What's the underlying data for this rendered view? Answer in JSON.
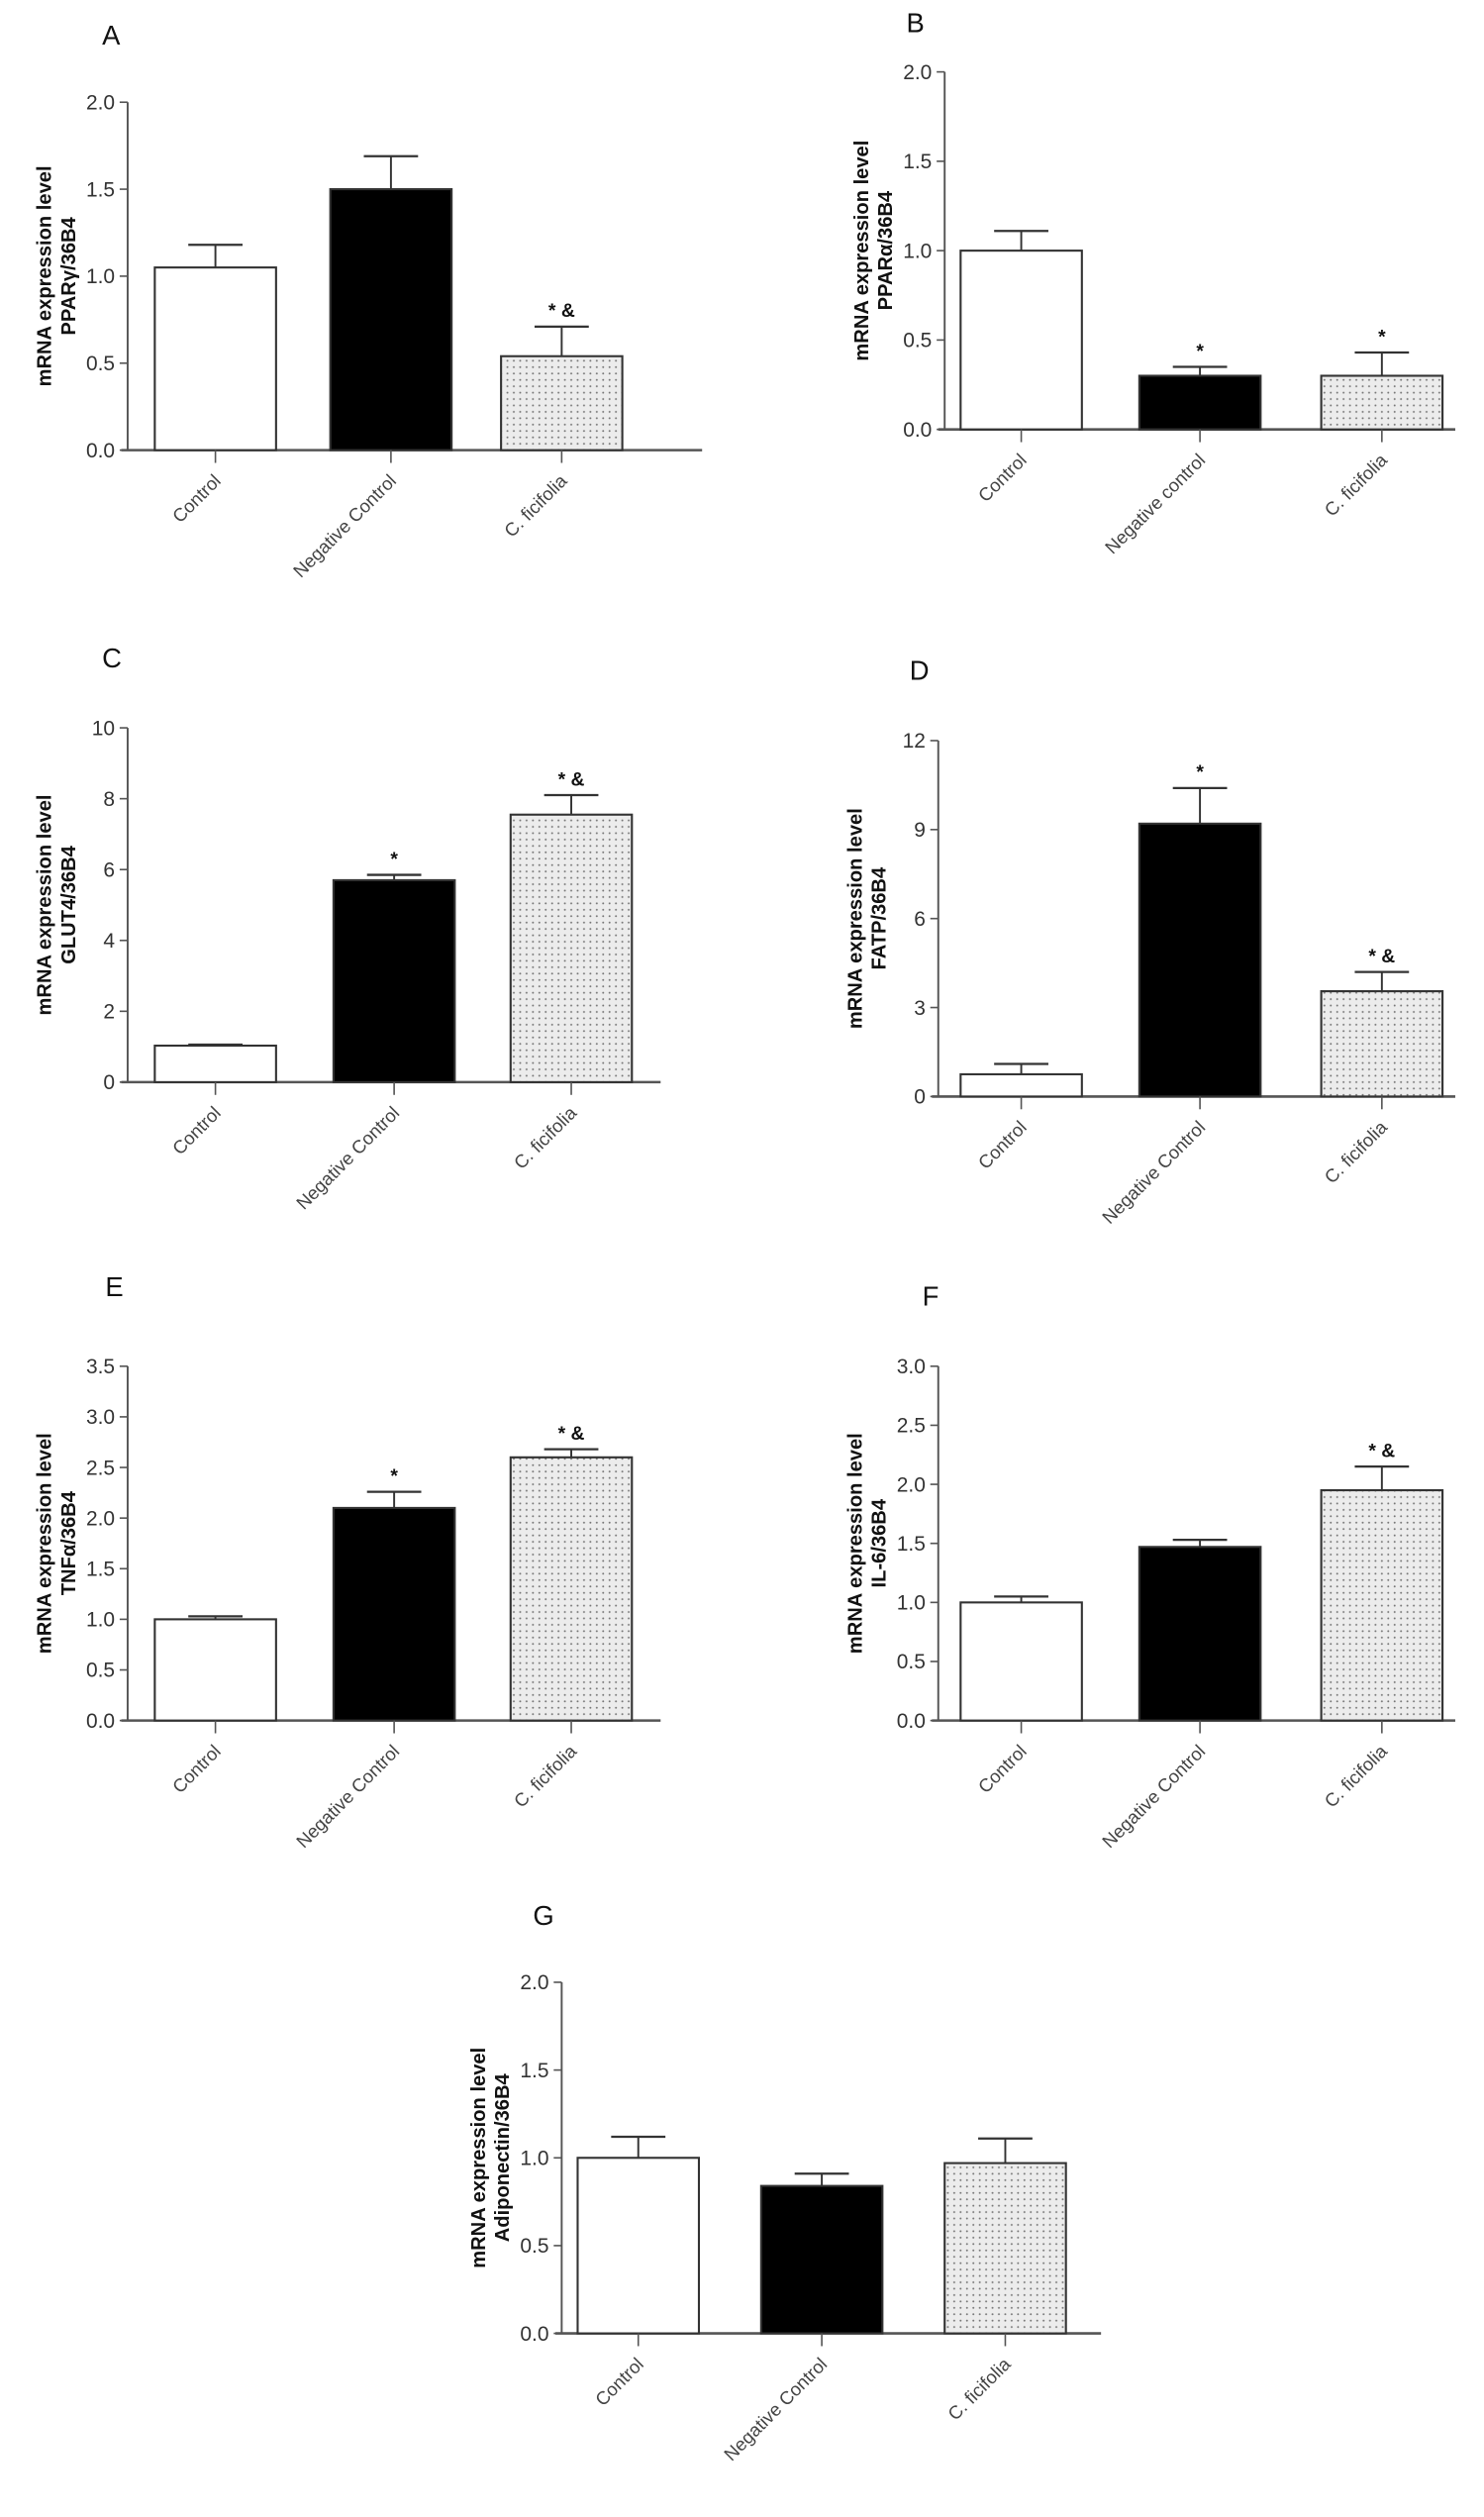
{
  "chart_data": [
    {
      "panel": "A",
      "type": "bar",
      "ylabel_line1": "mRNA expression level",
      "ylabel_line2": "PPARγ/36B4",
      "categories": [
        "Control",
        "Negative Control",
        "C. ficifolia"
      ],
      "values": [
        1.05,
        1.5,
        0.54
      ],
      "errors": [
        0.13,
        0.19,
        0.17
      ],
      "annotations": [
        "",
        "",
        "* &"
      ],
      "ylim": [
        0,
        2.0
      ],
      "yticks": [
        "0.0",
        "0.5",
        "1.0",
        "1.5",
        "2.0"
      ],
      "grid": false
    },
    {
      "panel": "B",
      "type": "bar",
      "ylabel_line1": "mRNA expression level",
      "ylabel_line2": "PPARα/36B4",
      "categories": [
        "Control",
        "Negative control",
        "C. ficifolia"
      ],
      "values": [
        1.0,
        0.3,
        0.3
      ],
      "errors": [
        0.11,
        0.05,
        0.13
      ],
      "annotations": [
        "",
        "*",
        "*"
      ],
      "ylim": [
        0,
        2.0
      ],
      "yticks": [
        "0.0",
        "0.5",
        "1.0",
        "1.5",
        "2.0"
      ],
      "grid": false
    },
    {
      "panel": "C",
      "type": "bar",
      "ylabel_line1": "mRNA expression level",
      "ylabel_line2": "GLUT4/36B4",
      "categories": [
        "Control",
        "Negative Control",
        "C. ficifolia"
      ],
      "values": [
        1.03,
        5.7,
        7.55
      ],
      "errors": [
        0.03,
        0.15,
        0.55
      ],
      "annotations": [
        "",
        "*",
        "* &"
      ],
      "ylim": [
        0,
        10
      ],
      "yticks": [
        "0",
        "2",
        "4",
        "6",
        "8",
        "10"
      ],
      "grid": false
    },
    {
      "panel": "D",
      "type": "bar",
      "ylabel_line1": "mRNA expression level",
      "ylabel_line2": "FATP/36B4",
      "categories": [
        "Control",
        "Negative Control",
        "C. ficifolia"
      ],
      "values": [
        0.75,
        9.2,
        3.55
      ],
      "errors": [
        0.35,
        1.2,
        0.65
      ],
      "annotations": [
        "",
        "*",
        "* &"
      ],
      "ylim": [
        0,
        12
      ],
      "yticks": [
        "0",
        "3",
        "6",
        "9",
        "12"
      ],
      "grid": false
    },
    {
      "panel": "E",
      "type": "bar",
      "ylabel_line1": "mRNA expression level",
      "ylabel_line2": "TNFα/36B4",
      "categories": [
        "Control",
        "Negative Control",
        "C. ficifolia"
      ],
      "values": [
        1.0,
        2.1,
        2.6
      ],
      "errors": [
        0.03,
        0.16,
        0.08
      ],
      "annotations": [
        "",
        "*",
        "* &"
      ],
      "ylim": [
        0,
        3.5
      ],
      "yticks": [
        "0.0",
        "0.5",
        "1.0",
        "1.5",
        "2.0",
        "2.5",
        "3.0",
        "3.5"
      ],
      "grid": false
    },
    {
      "panel": "F",
      "type": "bar",
      "ylabel_line1": "mRNA expression level",
      "ylabel_line2": "IL-6/36B4",
      "categories": [
        "Control",
        "Negative Control",
        "C. ficifolia"
      ],
      "values": [
        1.0,
        1.47,
        1.95
      ],
      "errors": [
        0.05,
        0.06,
        0.2
      ],
      "annotations": [
        "",
        "",
        "* &"
      ],
      "ylim": [
        0,
        3.0
      ],
      "yticks": [
        "0.0",
        "0.5",
        "1.0",
        "1.5",
        "2.0",
        "2.5",
        "3.0"
      ],
      "grid": false
    },
    {
      "panel": "G",
      "type": "bar",
      "ylabel_line1": "mRNA expression level",
      "ylabel_line2": "Adiponectin/36B4",
      "categories": [
        "Control",
        "Negative Control",
        "C. ficifolia"
      ],
      "values": [
        1.0,
        0.84,
        0.97
      ],
      "errors": [
        0.12,
        0.07,
        0.14
      ],
      "annotations": [
        "",
        "",
        ""
      ],
      "ylim": [
        0,
        2.0
      ],
      "yticks": [
        "0.0",
        "0.5",
        "1.0",
        "1.5",
        "2.0"
      ],
      "grid": false
    }
  ],
  "colors": {
    "control": "#ffffff",
    "negative_control": "#000000",
    "treatment": "#e6e6e6",
    "axis": "#555555"
  }
}
